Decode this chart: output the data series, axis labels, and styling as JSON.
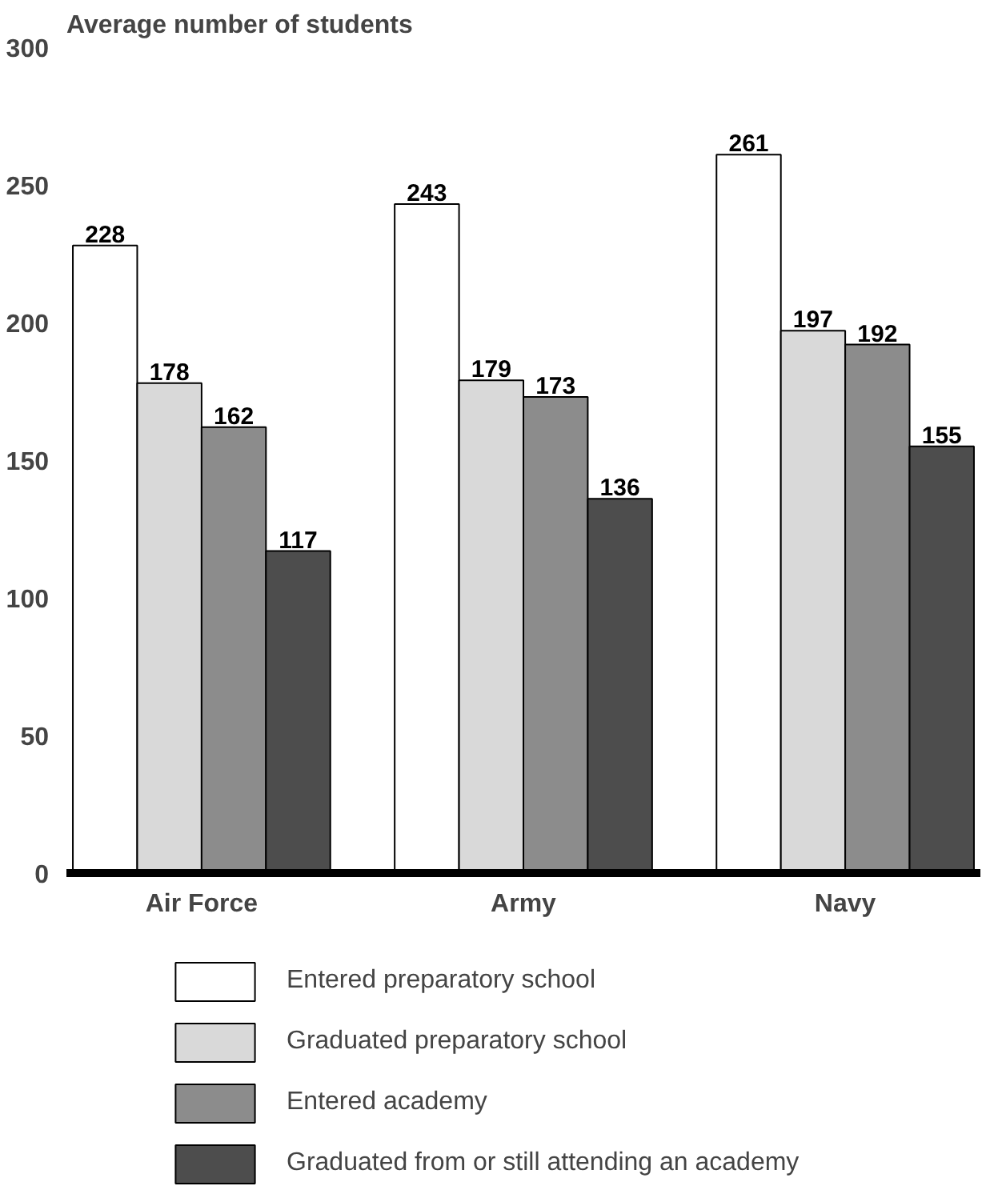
{
  "chart_data": {
    "type": "bar",
    "title": "Average number of students",
    "categories": [
      "Air Force",
      "Army",
      "Navy"
    ],
    "series": [
      {
        "name": "Entered preparatory school",
        "color": "#ffffff",
        "values": [
          228,
          243,
          261
        ]
      },
      {
        "name": "Graduated preparatory school",
        "color": "#d9d9d9",
        "values": [
          178,
          179,
          197
        ]
      },
      {
        "name": "Entered academy",
        "color": "#8c8c8c",
        "values": [
          162,
          173,
          192
        ]
      },
      {
        "name": "Graduated from or still attending an academy",
        "color": "#4d4d4d",
        "values": [
          117,
          136,
          155
        ]
      }
    ],
    "ylim": [
      0,
      300
    ],
    "yticks": [
      0,
      50,
      100,
      150,
      200,
      250,
      300
    ],
    "data_labels": true,
    "legend": "bottom",
    "grid": false
  }
}
